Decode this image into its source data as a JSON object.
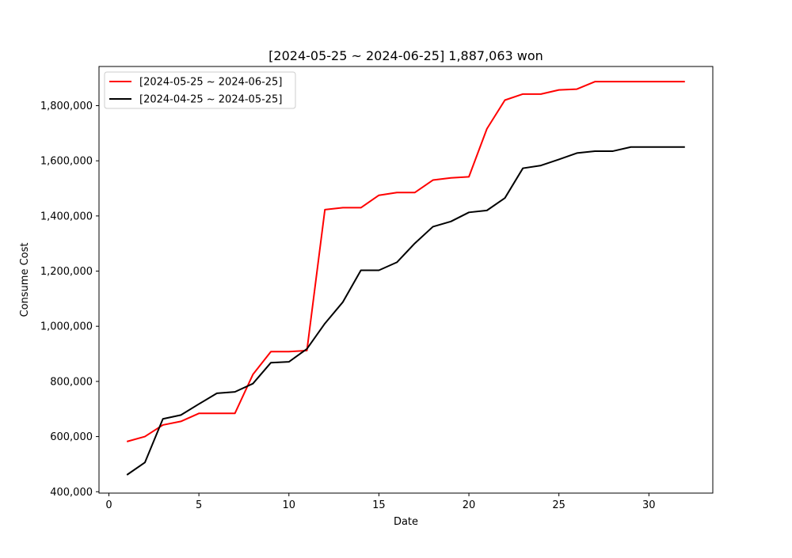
{
  "chart_data": {
    "type": "line",
    "title": "[2024-05-25 ~ 2024-06-25] 1,887,063 won",
    "xlabel": "Date",
    "ylabel": "Consume Cost",
    "xlim": [
      -0.55,
      33.55
    ],
    "ylim": [
      395000,
      1942000
    ],
    "xticks": [
      0,
      5,
      10,
      15,
      20,
      25,
      30
    ],
    "yticks": [
      400000,
      600000,
      800000,
      1000000,
      1200000,
      1400000,
      1600000,
      1800000
    ],
    "ytick_labels": [
      "400,000",
      "600,000",
      "800,000",
      "1,000,000",
      "1,200,000",
      "1,400,000",
      "1,600,000",
      "1,800,000"
    ],
    "grid": false,
    "legend_position": "top-left",
    "x": [
      1,
      2,
      3,
      4,
      5,
      6,
      7,
      8,
      9,
      10,
      11,
      12,
      13,
      14,
      15,
      16,
      17,
      18,
      19,
      20,
      21,
      22,
      23,
      24,
      25,
      26,
      27,
      28,
      29,
      30,
      31,
      32
    ],
    "series": [
      {
        "name": "[2024-05-25 ~ 2024-06-25]",
        "color": "#ff0000",
        "values": [
          582000,
          600000,
          642000,
          655000,
          684000,
          684000,
          684000,
          825000,
          908000,
          908000,
          912000,
          1423000,
          1430000,
          1430000,
          1475000,
          1485000,
          1485000,
          1530000,
          1538000,
          1542000,
          1716000,
          1820000,
          1842000,
          1842000,
          1857000,
          1860000,
          1887063,
          1887063,
          1887063,
          1887063,
          1887063,
          1887063
        ]
      },
      {
        "name": "[2024-04-25 ~ 2024-05-25]",
        "color": "#000000",
        "values": [
          461000,
          506000,
          664000,
          678000,
          718000,
          757000,
          762000,
          792000,
          868000,
          871000,
          918000,
          1010000,
          1088000,
          1203000,
          1203000,
          1232000,
          1301000,
          1361000,
          1380000,
          1413000,
          1420000,
          1465000,
          1573000,
          1583000,
          1605000,
          1628000,
          1635000,
          1635000,
          1650000,
          1650000,
          1650000,
          1650000
        ]
      }
    ]
  }
}
